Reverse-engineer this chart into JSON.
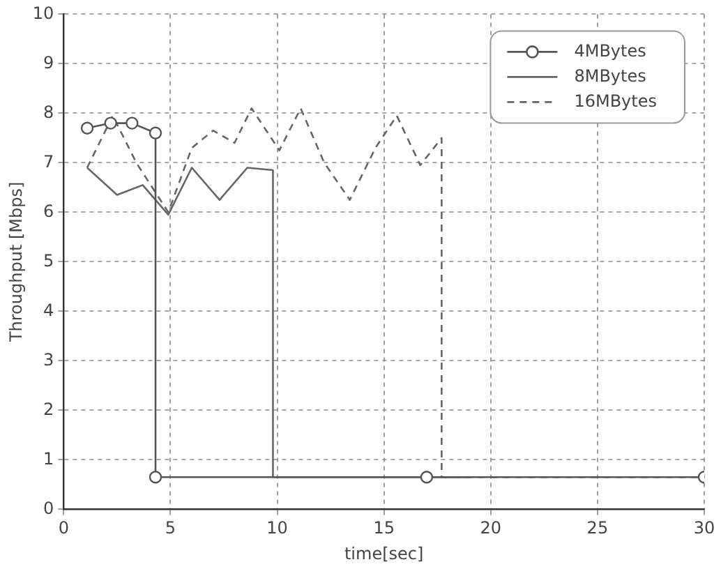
{
  "chart_data": {
    "type": "line",
    "xlabel": "time[sec]",
    "ylabel": "Throughput [Mbps]",
    "xlim": [
      0,
      30
    ],
    "xticks": [
      0,
      5,
      10,
      15,
      20,
      25,
      30
    ],
    "ylim": [
      0,
      10
    ],
    "yticks": [
      0,
      1,
      2,
      3,
      4,
      5,
      6,
      7,
      8,
      9,
      10
    ],
    "grid": true,
    "legend": "top right",
    "series": [
      {
        "name": "4MBytes",
        "color": "#555555",
        "marker": "circle",
        "line_style": "solid",
        "x": [
          1.1,
          2.2,
          3.2,
          4.3,
          4.3,
          17,
          30
        ],
        "values": [
          7.7,
          7.8,
          7.8,
          7.6,
          0.65,
          0.65,
          0.65
        ]
      },
      {
        "name": "8MBytes",
        "color": "#666666",
        "marker": "none",
        "line_style": "solid",
        "x": [
          1.1,
          2.5,
          3.7,
          4.9,
          6.0,
          7.3,
          8.6,
          9.8,
          9.8,
          19
        ],
        "values": [
          6.9,
          6.35,
          6.55,
          5.95,
          6.9,
          6.25,
          6.9,
          6.85,
          0.65,
          0.65
        ]
      },
      {
        "name": "16MBytes",
        "color": "#666666",
        "marker": "none",
        "line_style": "dashed",
        "x": [
          1.1,
          2.3,
          3.4,
          4.3,
          4.9,
          6.0,
          7.0,
          8.0,
          8.8,
          10.1,
          11.1,
          12.2,
          13.4,
          14.6,
          15.6,
          16.7,
          17.7,
          17.7,
          30
        ],
        "values": [
          6.9,
          7.95,
          7.0,
          6.4,
          6.0,
          7.3,
          7.65,
          7.4,
          8.1,
          7.25,
          8.1,
          7.0,
          6.25,
          7.3,
          7.95,
          6.95,
          7.5,
          0.65,
          0.65
        ]
      }
    ]
  }
}
